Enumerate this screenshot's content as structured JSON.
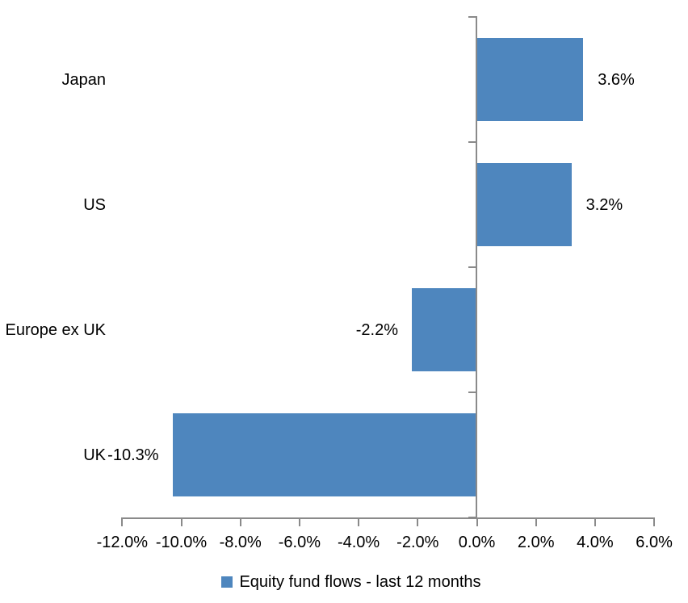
{
  "chart_data": {
    "type": "bar",
    "orientation": "horizontal",
    "title": "",
    "categories": [
      "Japan",
      "US",
      "Europe ex UK",
      "UK"
    ],
    "values": [
      3.6,
      3.2,
      -2.2,
      -10.3
    ],
    "value_labels": [
      "3.6%",
      "3.2%",
      "-2.2%",
      "-10.3%"
    ],
    "series": [
      {
        "name": "Equity fund flows - last 12 months",
        "values": [
          3.6,
          3.2,
          -2.2,
          -10.3
        ]
      }
    ],
    "x_axis": {
      "tick_values": [
        -12,
        -10,
        -8,
        -6,
        -4,
        -2,
        0,
        2,
        4,
        6
      ],
      "tick_labels": [
        "-12.0%",
        "-10.0%",
        "-8.0%",
        "-6.0%",
        "-4.0%",
        "-2.0%",
        "0.0%",
        "2.0%",
        "4.0%",
        "6.0%"
      ],
      "xlim": [
        -12,
        6
      ]
    },
    "legend": {
      "label": "Equity fund flows - last 12 months",
      "position": "bottom"
    },
    "grid": false,
    "colors": {
      "bar": "#4E86BE",
      "axis": "#8A8A8A",
      "text": "#000000",
      "background": "#FFFFFF"
    }
  }
}
